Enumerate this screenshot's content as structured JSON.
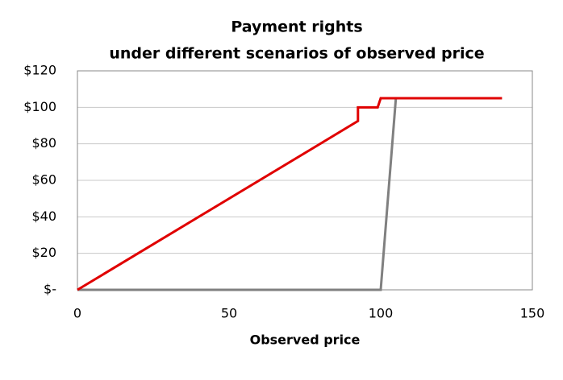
{
  "chart_data": {
    "type": "line",
    "title": "Payment rights",
    "subtitle": "under different scenarios of observed price",
    "x_label": "Observed price",
    "xlim": [
      0,
      150
    ],
    "xticks": [
      0,
      50,
      100,
      150
    ],
    "ylim": [
      0,
      120
    ],
    "yticks": [
      {
        "value": 0,
        "label": "$-"
      },
      {
        "value": 20,
        "label": "$20"
      },
      {
        "value": 40,
        "label": "$40"
      },
      {
        "value": 60,
        "label": "$60"
      },
      {
        "value": 80,
        "label": "$80"
      },
      {
        "value": 100,
        "label": "$100"
      },
      {
        "value": 120,
        "label": "$120"
      }
    ],
    "grid": true,
    "series": [
      {
        "color": "#808080",
        "x": [
          0,
          100,
          105
        ],
        "values": [
          0,
          0,
          105
        ]
      },
      {
        "color": "#e00000",
        "x": [
          0,
          92.5,
          92.5,
          99,
          100,
          140
        ],
        "values": [
          0,
          92.5,
          100,
          100,
          105,
          105
        ]
      }
    ]
  }
}
